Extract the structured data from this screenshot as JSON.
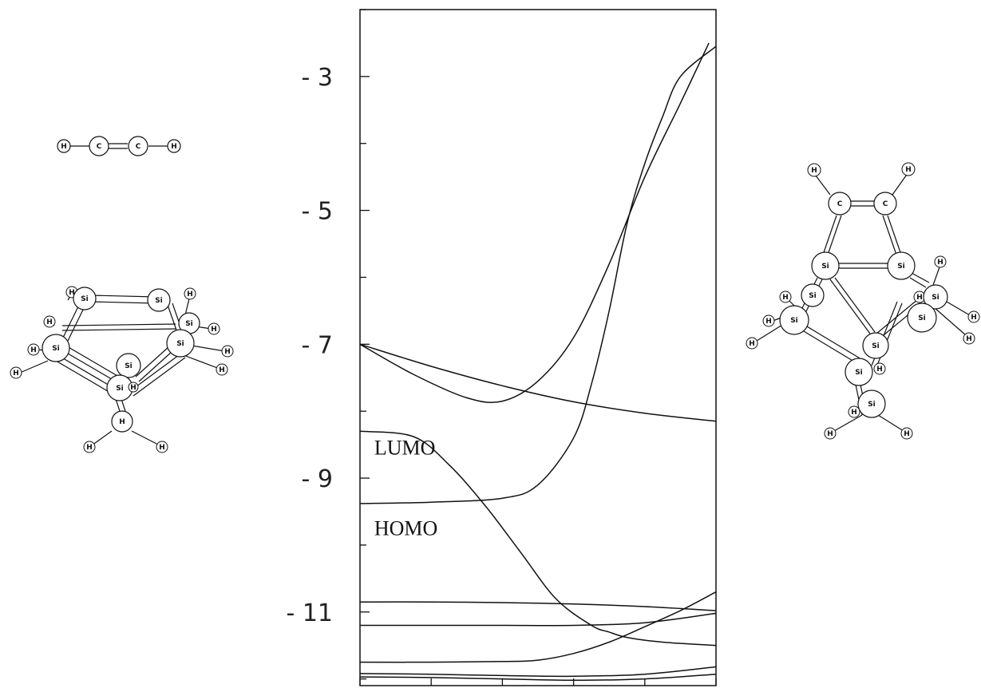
{
  "chart_data": {
    "type": "line",
    "title": "",
    "xlabel": "",
    "ylabel": "",
    "ylim": [
      -12.1,
      -2
    ],
    "yticks": [
      -3,
      -5,
      -7,
      -9,
      -11
    ],
    "ytick_labels": [
      "- 3",
      "- 5",
      "- 7",
      "- 9",
      "- 11"
    ],
    "x_minor_ticks": [
      0,
      0.2,
      0.4,
      0.6,
      0.8,
      1.0
    ],
    "xlim": [
      0,
      1
    ],
    "annotations": [
      {
        "text": "LUMO",
        "x": 0.04,
        "y": -8.65
      },
      {
        "text": "HOMO",
        "x": 0.04,
        "y": -9.85
      }
    ],
    "series": [
      {
        "x": [
          0,
          0.2,
          0.4,
          0.6,
          0.8,
          1.0
        ],
        "values": [
          -7.0,
          -7.33,
          -7.62,
          -7.86,
          -8.03,
          -8.15
        ]
      },
      {
        "x": [
          0,
          0.15,
          0.3,
          0.4,
          0.5,
          0.6,
          0.7,
          0.8,
          0.9,
          0.98
        ],
        "values": [
          -7.0,
          -7.45,
          -7.8,
          -7.85,
          -7.55,
          -6.9,
          -5.8,
          -4.5,
          -3.4,
          -2.5
        ]
      },
      {
        "x": [
          0,
          0.15,
          0.25,
          0.35,
          0.45,
          0.55,
          0.65,
          0.7,
          0.75,
          0.85,
          1.0
        ],
        "values": [
          -8.3,
          -8.38,
          -8.8,
          -9.4,
          -10.1,
          -10.8,
          -11.2,
          -11.3,
          -11.38,
          -11.45,
          -11.5
        ]
      },
      {
        "x": [
          0,
          0.2,
          0.4,
          0.5,
          0.6,
          0.65,
          0.7,
          0.75,
          0.8,
          0.85,
          0.9,
          1.0
        ],
        "values": [
          -9.38,
          -9.36,
          -9.3,
          -9.1,
          -8.4,
          -7.6,
          -6.5,
          -5.2,
          -4.3,
          -3.6,
          -3.0,
          -2.55
        ]
      },
      {
        "x": [
          0,
          0.2,
          0.4,
          0.6,
          0.8,
          1.0
        ],
        "values": [
          -10.85,
          -10.85,
          -10.86,
          -10.88,
          -10.92,
          -10.98
        ]
      },
      {
        "x": [
          0,
          0.2,
          0.4,
          0.6,
          0.8,
          1.0
        ],
        "values": [
          -11.2,
          -11.2,
          -11.2,
          -11.2,
          -11.16,
          -11.02
        ]
      },
      {
        "x": [
          0,
          0.2,
          0.4,
          0.5,
          0.6,
          0.7,
          0.8,
          0.9,
          1.0
        ],
        "values": [
          -11.75,
          -11.75,
          -11.74,
          -11.72,
          -11.62,
          -11.45,
          -11.22,
          -10.98,
          -10.7
        ]
      },
      {
        "x": [
          0,
          0.2,
          0.4,
          0.6,
          0.8,
          1.0
        ],
        "values": [
          -11.92,
          -11.93,
          -11.95,
          -11.96,
          -11.93,
          -11.82
        ]
      },
      {
        "x": [
          0,
          0.2,
          0.4,
          0.6,
          0.8,
          1.0
        ],
        "values": [
          -11.97,
          -11.98,
          -12.0,
          -12.02,
          -12.0,
          -11.93
        ]
      }
    ]
  },
  "molecules": {
    "acetylene": {
      "atoms": [
        "H",
        "C",
        "C",
        "H"
      ]
    },
    "reactant_cluster": {
      "atoms": [
        "Si",
        "Si",
        "Si",
        "Si",
        "Si",
        "Si",
        "Si",
        "H",
        "H",
        "H",
        "H",
        "H",
        "H",
        "H",
        "H",
        "H",
        "H",
        "H"
      ]
    },
    "product": {
      "atoms": [
        "H",
        "H",
        "C",
        "C",
        "Si",
        "Si",
        "Si",
        "Si",
        "Si",
        "Si",
        "Si",
        "Si",
        "H",
        "H",
        "H",
        "H",
        "H",
        "H",
        "H",
        "H",
        "H",
        "H"
      ]
    }
  }
}
